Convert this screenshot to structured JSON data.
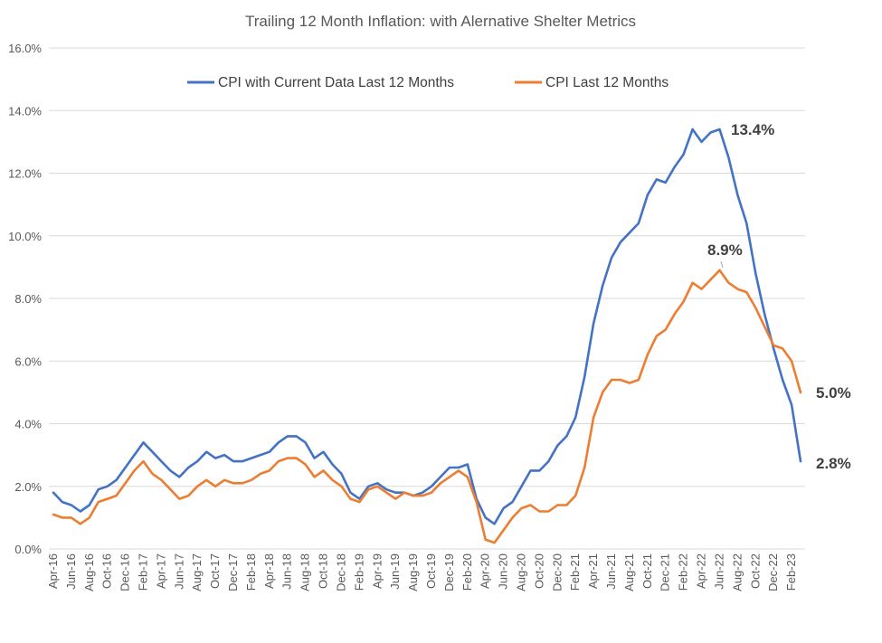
{
  "chart_data": {
    "type": "line",
    "title": "Trailing 12 Month Inflation: with Alernative Shelter Metrics",
    "xlabel": "",
    "ylabel": "",
    "ylim": [
      0,
      16
    ],
    "y_ticks": [
      0,
      2,
      4,
      6,
      8,
      10,
      12,
      14,
      16
    ],
    "y_tick_labels": [
      "0.0%",
      "2.0%",
      "4.0%",
      "6.0%",
      "8.0%",
      "10.0%",
      "12.0%",
      "14.0%",
      "16.0%"
    ],
    "grid": true,
    "legend_position": "top",
    "x_tick_labels": [
      "Apr-16",
      "Jun-16",
      "Aug-16",
      "Oct-16",
      "Dec-16",
      "Feb-17",
      "Apr-17",
      "Jun-17",
      "Aug-17",
      "Oct-17",
      "Dec-17",
      "Feb-18",
      "Apr-18",
      "Jun-18",
      "Aug-18",
      "Oct-18",
      "Dec-18",
      "Feb-19",
      "Apr-19",
      "Jun-19",
      "Aug-19",
      "Oct-19",
      "Dec-19",
      "Feb-20",
      "Apr-20",
      "Jun-20",
      "Aug-20",
      "Oct-20",
      "Dec-20",
      "Feb-21",
      "Apr-21",
      "Jun-21",
      "Aug-21",
      "Oct-21",
      "Dec-21",
      "Feb-22",
      "Apr-22",
      "Jun-22",
      "Aug-22",
      "Oct-22",
      "Dec-22",
      "Feb-23"
    ],
    "x": [
      "Apr-16",
      "May-16",
      "Jun-16",
      "Jul-16",
      "Aug-16",
      "Sep-16",
      "Oct-16",
      "Nov-16",
      "Dec-16",
      "Jan-17",
      "Feb-17",
      "Mar-17",
      "Apr-17",
      "May-17",
      "Jun-17",
      "Jul-17",
      "Aug-17",
      "Sep-17",
      "Oct-17",
      "Nov-17",
      "Dec-17",
      "Jan-18",
      "Feb-18",
      "Mar-18",
      "Apr-18",
      "May-18",
      "Jun-18",
      "Jul-18",
      "Aug-18",
      "Sep-18",
      "Oct-18",
      "Nov-18",
      "Dec-18",
      "Jan-19",
      "Feb-19",
      "Mar-19",
      "Apr-19",
      "May-19",
      "Jun-19",
      "Jul-19",
      "Aug-19",
      "Sep-19",
      "Oct-19",
      "Nov-19",
      "Dec-19",
      "Jan-20",
      "Feb-20",
      "Mar-20",
      "Apr-20",
      "May-20",
      "Jun-20",
      "Jul-20",
      "Aug-20",
      "Sep-20",
      "Oct-20",
      "Nov-20",
      "Dec-20",
      "Jan-21",
      "Feb-21",
      "Mar-21",
      "Apr-21",
      "May-21",
      "Jun-21",
      "Jul-21",
      "Aug-21",
      "Sep-21",
      "Oct-21",
      "Nov-21",
      "Dec-21",
      "Jan-22",
      "Feb-22",
      "Mar-22",
      "Apr-22",
      "May-22",
      "Jun-22",
      "Jul-22",
      "Aug-22",
      "Sep-22",
      "Oct-22",
      "Nov-22",
      "Dec-22",
      "Jan-23",
      "Feb-23",
      "Mar-23"
    ],
    "series": [
      {
        "name": "CPI with Current Data Last 12 Months",
        "color": "#4472c4",
        "values": [
          1.8,
          1.5,
          1.4,
          1.2,
          1.4,
          1.9,
          2.0,
          2.2,
          2.6,
          3.0,
          3.4,
          3.1,
          2.8,
          2.5,
          2.3,
          2.6,
          2.8,
          3.1,
          2.9,
          3.0,
          2.8,
          2.8,
          2.9,
          3.0,
          3.1,
          3.4,
          3.6,
          3.6,
          3.4,
          2.9,
          3.1,
          2.7,
          2.4,
          1.8,
          1.6,
          2.0,
          2.1,
          1.9,
          1.8,
          1.8,
          1.7,
          1.8,
          2.0,
          2.3,
          2.6,
          2.6,
          2.7,
          1.6,
          1.0,
          0.8,
          1.3,
          1.5,
          2.0,
          2.5,
          2.5,
          2.8,
          3.3,
          3.6,
          4.2,
          5.5,
          7.2,
          8.4,
          9.3,
          9.8,
          10.1,
          10.4,
          11.3,
          11.8,
          11.7,
          12.2,
          12.6,
          13.4,
          13.0,
          13.3,
          13.4,
          12.5,
          11.3,
          10.4,
          8.8,
          7.5,
          6.4,
          5.4,
          4.6,
          2.8
        ]
      },
      {
        "name": "CPI Last 12 Months",
        "color": "#ed7d31",
        "values": [
          1.1,
          1.0,
          1.0,
          0.8,
          1.0,
          1.5,
          1.6,
          1.7,
          2.1,
          2.5,
          2.8,
          2.4,
          2.2,
          1.9,
          1.6,
          1.7,
          2.0,
          2.2,
          2.0,
          2.2,
          2.1,
          2.1,
          2.2,
          2.4,
          2.5,
          2.8,
          2.9,
          2.9,
          2.7,
          2.3,
          2.5,
          2.2,
          2.0,
          1.6,
          1.5,
          1.9,
          2.0,
          1.8,
          1.6,
          1.8,
          1.7,
          1.7,
          1.8,
          2.1,
          2.3,
          2.5,
          2.3,
          1.5,
          0.3,
          0.2,
          0.6,
          1.0,
          1.3,
          1.4,
          1.2,
          1.2,
          1.4,
          1.4,
          1.7,
          2.6,
          4.2,
          5.0,
          5.4,
          5.4,
          5.3,
          5.4,
          6.2,
          6.8,
          7.0,
          7.5,
          7.9,
          8.5,
          8.3,
          8.6,
          8.9,
          8.5,
          8.3,
          8.2,
          7.7,
          7.1,
          6.5,
          6.4,
          6.0,
          5.0
        ]
      }
    ],
    "annotations": [
      {
        "series": 0,
        "point": "Jun-22",
        "text": "13.4%"
      },
      {
        "series": 1,
        "point": "Jun-22",
        "text": "8.9%"
      },
      {
        "series": 1,
        "point": "Mar-23",
        "text": "5.0%"
      },
      {
        "series": 0,
        "point": "Mar-23",
        "text": "2.8%"
      }
    ]
  }
}
